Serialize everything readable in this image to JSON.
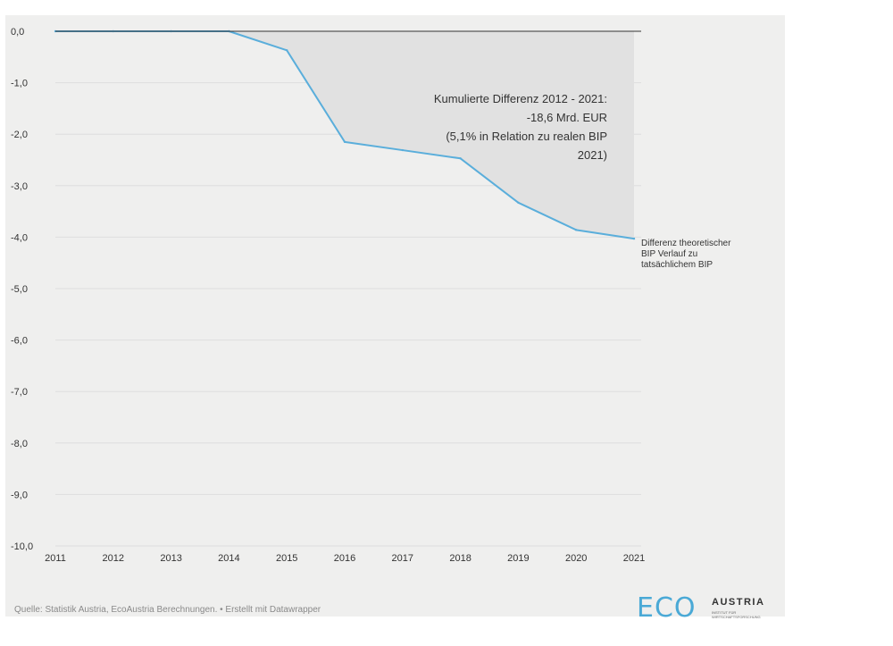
{
  "chart_data": {
    "type": "area",
    "x": [
      2011,
      2012,
      2013,
      2014,
      2015,
      2016,
      2017,
      2018,
      2019,
      2020,
      2021
    ],
    "series": [
      {
        "name": "Differenz theoretischer BIP Verlauf zu tatsächlichem BIP",
        "values": [
          0.0,
          0.0,
          0.0,
          0.0,
          -0.37,
          -2.15,
          -2.31,
          -2.47,
          -3.33,
          -3.86,
          -4.03
        ],
        "color": "#5aaedb"
      }
    ],
    "series_label_lines": [
      "Differenz theoretischer",
      "BIP Verlauf zu",
      "tatsächlichem BIP"
    ],
    "x_tick_labels": [
      "2011",
      "2012",
      "2013",
      "2014",
      "2015",
      "2016",
      "2017",
      "2018",
      "2019",
      "2020",
      "2021"
    ],
    "y_ticks": [
      0,
      -1,
      -2,
      -3,
      -4,
      -5,
      -6,
      -7,
      -8,
      -9,
      -10
    ],
    "y_tick_labels": [
      "0,0",
      "-1,0",
      "-2,0",
      "-3,0",
      "-4,0",
      "-5,0",
      "-6,0",
      "-7,0",
      "-8,0",
      "-9,0",
      "-10,0"
    ],
    "ylim": [
      -10,
      0
    ],
    "xlim": [
      2011,
      2021
    ],
    "grid": true,
    "area_fill_color": "#e1e1e1",
    "annotation_lines": [
      "Kumulierte Differenz 2012 - 2021:",
      "-18,6 Mrd. EUR",
      "(5,1% in Relation zu realen BIP",
      "2021)"
    ]
  },
  "footer": {
    "source": "Quelle: Statistik Austria, EcoAustria Berechnungen. • Erstellt mit Datawrapper"
  },
  "logo": {
    "eco": "ECO",
    "austria": "AUSTRIA",
    "small_line1": "INSTITUT FÜR",
    "small_line2": "WIRTSCHAFTSFORSCHUNG"
  },
  "colors": {
    "background": "#efefee",
    "line": "#5aaedb",
    "accent": "#4aa9d6"
  }
}
